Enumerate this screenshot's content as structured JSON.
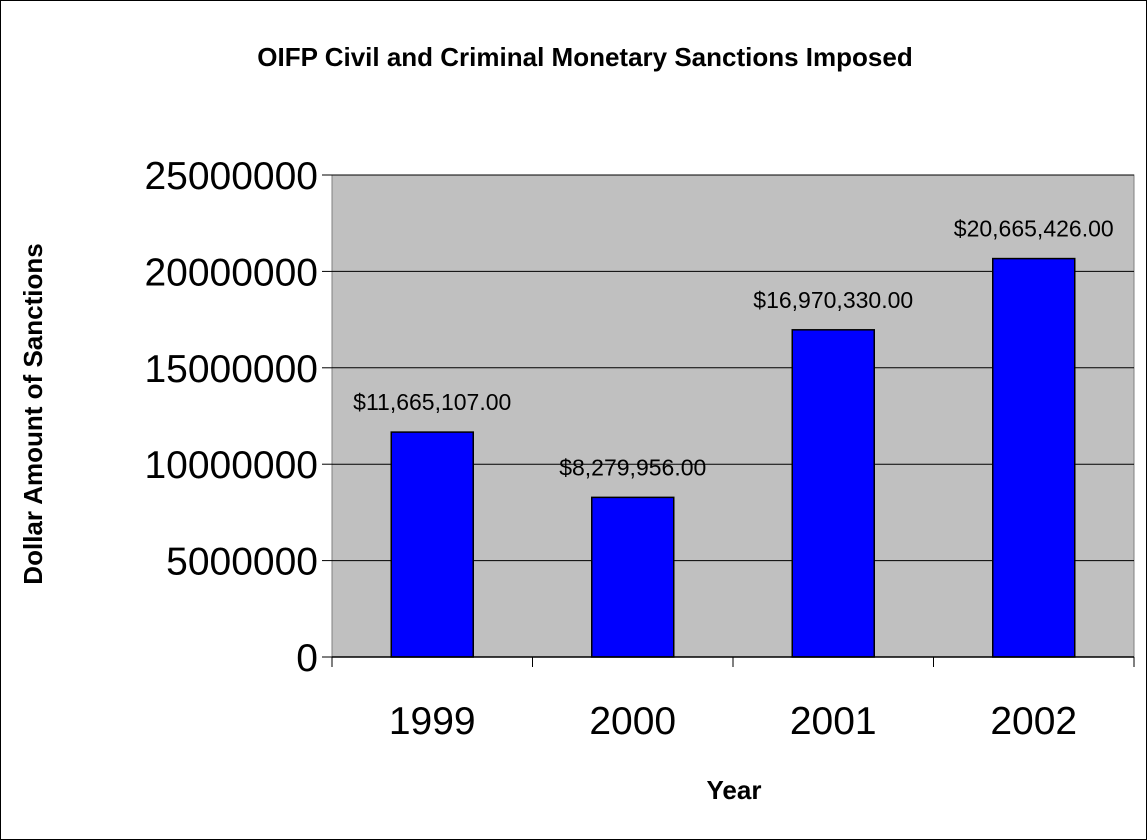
{
  "chart_data": {
    "type": "bar",
    "title": "OIFP Civil and Criminal Monetary Sanctions Imposed",
    "xlabel": "Year",
    "ylabel": "Dollar Amount of Sanctions",
    "categories": [
      "1999",
      "2000",
      "2001",
      "2002"
    ],
    "values": [
      11665107,
      8279956,
      16970330,
      20665426
    ],
    "data_labels": [
      "$11,665,107.00",
      "$8,279,956.00",
      "$16,970,330.00",
      "$20,665,426.00"
    ],
    "y_ticks": [
      "0",
      "5000000",
      "10000000",
      "15000000",
      "20000000",
      "25000000"
    ],
    "y_tick_values": [
      0,
      5000000,
      10000000,
      15000000,
      20000000,
      25000000
    ],
    "ylim": [
      0,
      25000000
    ],
    "grid": true,
    "legend": "none",
    "colors": {
      "bar_fill": "#0000ff",
      "bar_stroke": "#000000",
      "plot_background": "#c0c0c0",
      "gridline": "#000000"
    }
  }
}
